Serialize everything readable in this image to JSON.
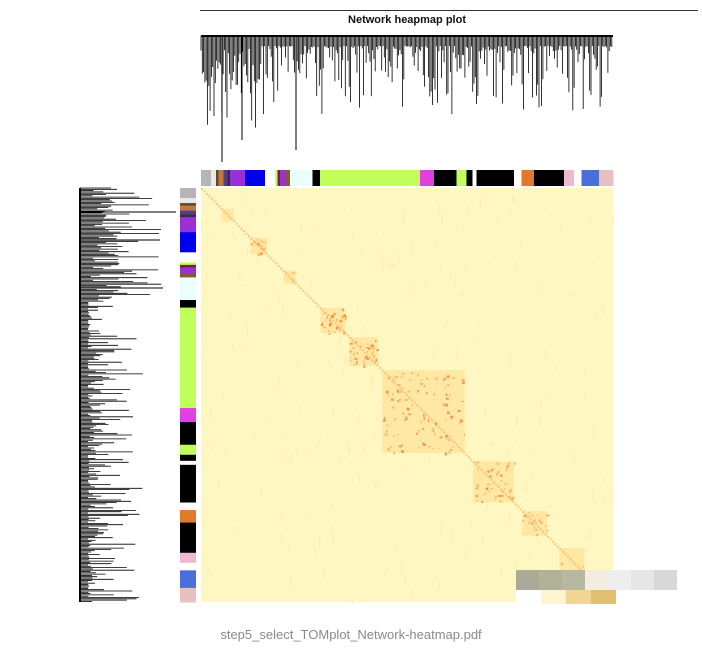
{
  "figure": {
    "title": "Network heapmap plot",
    "caption": "step5_select_TOMplot_Network-heatmap.pdf"
  },
  "chart_data": {
    "type": "heatmap",
    "title": "Network heapmap plot",
    "xlabel": "",
    "ylabel": "",
    "colormap": [
      "#fff7c2",
      "#ffe6a0",
      "#fbb268",
      "#f08030",
      "#e05a10"
    ],
    "dendrograms": [
      "top",
      "left"
    ],
    "module_color_bar": [
      {
        "color": "#b5b5b5",
        "frac": 0.02
      },
      {
        "color": "#e8e8e8",
        "frac": 0.01
      },
      {
        "color": "#5c4a2a",
        "frac": 0.005
      },
      {
        "color": "#c07a40",
        "frac": 0.01
      },
      {
        "color": "#5a3a8a",
        "frac": 0.008
      },
      {
        "color": "#333333",
        "frac": 0.005
      },
      {
        "color": "#9b30d9",
        "frac": 0.03
      },
      {
        "color": "#0000ee",
        "frac": 0.04
      },
      {
        "color": "#ffffff",
        "frac": 0.02
      },
      {
        "color": "#c8ff5a",
        "frac": 0.005
      },
      {
        "color": "#6b2b2b",
        "frac": 0.005
      },
      {
        "color": "#9b30d9",
        "frac": 0.012
      },
      {
        "color": "#8b5a2b",
        "frac": 0.008
      },
      {
        "color": "#e9ffff",
        "frac": 0.045
      },
      {
        "color": "#000000",
        "frac": 0.015
      },
      {
        "color": "#c0ff5a",
        "frac": 0.2
      },
      {
        "color": "#e040e0",
        "frac": 0.028
      },
      {
        "color": "#000000",
        "frac": 0.045
      },
      {
        "color": "#c0ff5a",
        "frac": 0.02
      },
      {
        "color": "#000000",
        "frac": 0.012
      },
      {
        "color": "#ffffff",
        "frac": 0.008
      },
      {
        "color": "#000000",
        "frac": 0.075
      },
      {
        "color": "#ffffff",
        "frac": 0.015
      },
      {
        "color": "#e07a2a",
        "frac": 0.025
      },
      {
        "color": "#000000",
        "frac": 0.06
      },
      {
        "color": "#f0b8d0",
        "frac": 0.02
      },
      {
        "color": "#ffffff",
        "frac": 0.015
      },
      {
        "color": "#4a6fd8",
        "frac": 0.035
      },
      {
        "color": "#e8c0c0",
        "frac": 0.028
      }
    ],
    "diagonal_blocks": [
      {
        "pos": 0.05,
        "size": 0.03,
        "level": 0.35
      },
      {
        "pos": 0.12,
        "size": 0.04,
        "level": 0.55
      },
      {
        "pos": 0.2,
        "size": 0.03,
        "level": 0.45
      },
      {
        "pos": 0.29,
        "size": 0.06,
        "level": 0.65
      },
      {
        "pos": 0.36,
        "size": 0.07,
        "level": 0.6
      },
      {
        "pos": 0.44,
        "size": 0.2,
        "level": 0.7
      },
      {
        "pos": 0.66,
        "size": 0.1,
        "level": 0.6
      },
      {
        "pos": 0.78,
        "size": 0.06,
        "level": 0.55
      },
      {
        "pos": 0.87,
        "size": 0.06,
        "level": 0.4
      },
      {
        "pos": 0.95,
        "size": 0.04,
        "level": 0.45
      }
    ]
  },
  "colorbar_legend": [
    "#aaaa96",
    "#b2b29a",
    "#b8b8a0",
    "#f4ece0",
    "#eeeeee",
    "#e6e6e6",
    "#d8d8d8",
    "#ffffff",
    "#fff4d0",
    "#f0d690",
    "#e0c070"
  ]
}
